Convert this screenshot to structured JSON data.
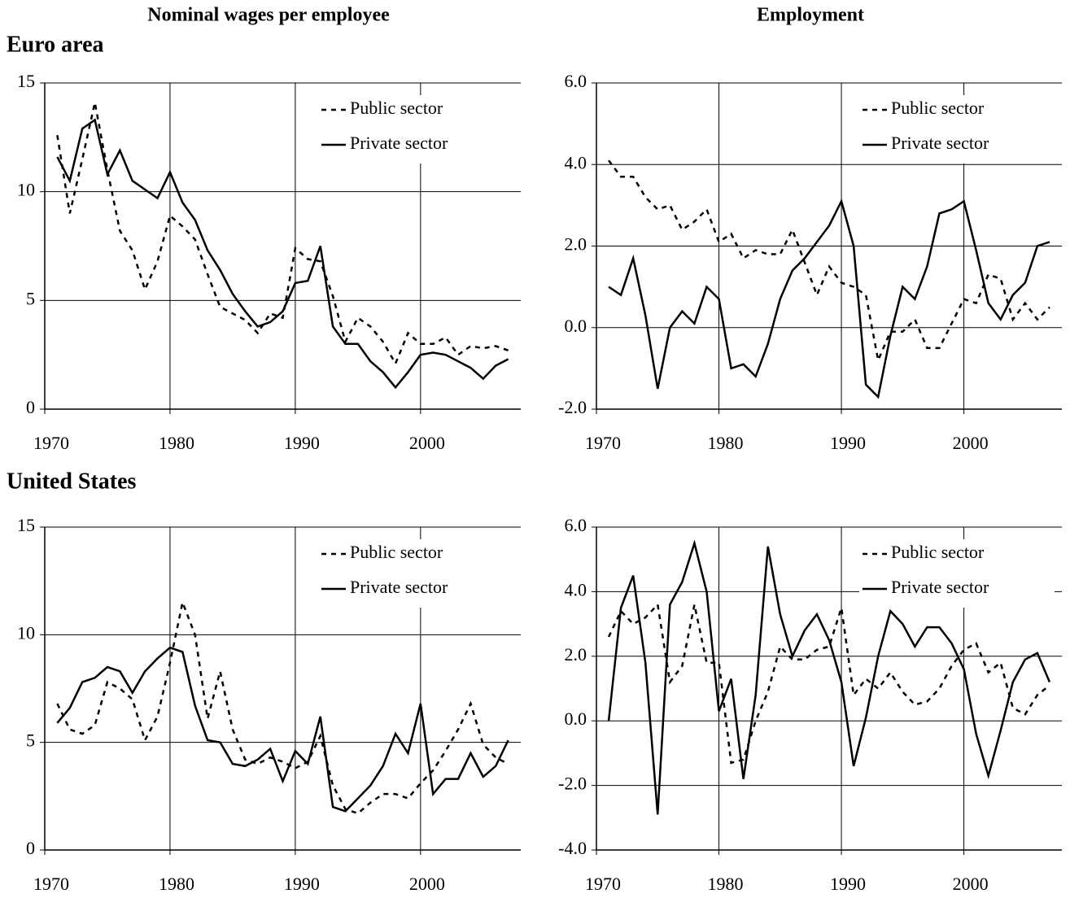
{
  "column_titles": [
    "Nominal wages per employee",
    "Employment"
  ],
  "row_titles": [
    "Euro area",
    "United States"
  ],
  "chart_data": [
    {
      "type": "line",
      "legend": "upper right",
      "grid": true,
      "x": [
        1971,
        1972,
        1973,
        1974,
        1975,
        1976,
        1977,
        1978,
        1979,
        1980,
        1981,
        1982,
        1983,
        1984,
        1985,
        1986,
        1987,
        1988,
        1989,
        1990,
        1991,
        1992,
        1993,
        1994,
        1995,
        1996,
        1997,
        1998,
        1999,
        2000,
        2001,
        2002,
        2003,
        2004,
        2005,
        2006,
        2007
      ],
      "xlim": [
        1970,
        2008
      ],
      "xticks": [
        1970,
        1980,
        1990,
        2000
      ],
      "ylim": [
        0,
        15
      ],
      "yticks": [
        0,
        5,
        10,
        15
      ],
      "series": [
        {
          "name": "Public sector",
          "color": "#000000",
          "linestyle": "dashed",
          "values": [
            12.6,
            9.0,
            11.5,
            14.1,
            11.0,
            8.2,
            7.3,
            5.5,
            6.8,
            8.9,
            8.4,
            7.8,
            6.2,
            4.7,
            4.4,
            4.1,
            3.5,
            4.4,
            4.2,
            7.4,
            6.9,
            6.8,
            5.2,
            3.1,
            4.2,
            3.8,
            3.1,
            2.1,
            3.5,
            3.0,
            3.0,
            3.3,
            2.5,
            2.9,
            2.8,
            2.9,
            2.7
          ]
        },
        {
          "name": "Private sector",
          "color": "#000000",
          "linestyle": "solid",
          "values": [
            11.6,
            10.5,
            12.9,
            13.3,
            10.8,
            11.9,
            10.5,
            10.1,
            9.7,
            10.9,
            9.5,
            8.7,
            7.3,
            6.4,
            5.3,
            4.5,
            3.8,
            4.0,
            4.5,
            5.8,
            5.9,
            7.5,
            3.8,
            3.0,
            3.0,
            2.2,
            1.7,
            1.0,
            1.7,
            2.5,
            2.6,
            2.5,
            2.2,
            1.9,
            1.4,
            2.0,
            2.3
          ]
        }
      ]
    },
    {
      "type": "line",
      "legend": "upper right",
      "grid": true,
      "x": [
        1971,
        1972,
        1973,
        1974,
        1975,
        1976,
        1977,
        1978,
        1979,
        1980,
        1981,
        1982,
        1983,
        1984,
        1985,
        1986,
        1987,
        1988,
        1989,
        1990,
        1991,
        1992,
        1993,
        1994,
        1995,
        1996,
        1997,
        1998,
        1999,
        2000,
        2001,
        2002,
        2003,
        2004,
        2005,
        2006,
        2007
      ],
      "xlim": [
        1970,
        2008
      ],
      "xticks": [
        1970,
        1980,
        1990,
        2000
      ],
      "ylim": [
        -2,
        6
      ],
      "yticks": [
        {
          "value": -2,
          "label": "-2.0"
        },
        {
          "value": 0,
          "label": "0.0"
        },
        {
          "value": 2,
          "label": "2.0"
        },
        {
          "value": 4,
          "label": "4.0"
        },
        {
          "value": 6,
          "label": "6.0"
        }
      ],
      "series": [
        {
          "name": "Public sector",
          "color": "#000000",
          "linestyle": "dashed",
          "values": [
            4.1,
            3.7,
            3.7,
            3.2,
            2.9,
            3.0,
            2.4,
            2.6,
            2.9,
            2.1,
            2.3,
            1.7,
            1.9,
            1.8,
            1.8,
            2.4,
            1.6,
            0.8,
            1.5,
            1.1,
            1.0,
            0.8,
            -0.8,
            -0.1,
            -0.1,
            0.2,
            -0.5,
            -0.5,
            0.1,
            0.7,
            0.6,
            1.3,
            1.2,
            0.2,
            0.6,
            0.2,
            0.5
          ]
        },
        {
          "name": "Private sector",
          "color": "#000000",
          "linestyle": "solid",
          "values": [
            1.0,
            0.8,
            1.7,
            0.3,
            -1.5,
            0.0,
            0.4,
            0.1,
            1.0,
            0.7,
            -1.0,
            -0.9,
            -1.2,
            -0.4,
            0.7,
            1.4,
            1.7,
            2.1,
            2.5,
            3.1,
            2.0,
            -1.4,
            -1.7,
            -0.2,
            1.0,
            0.7,
            1.5,
            2.8,
            2.9,
            3.1,
            1.9,
            0.6,
            0.2,
            0.8,
            1.1,
            2.0,
            2.1
          ]
        }
      ]
    },
    {
      "type": "line",
      "legend": "upper right",
      "grid": true,
      "x": [
        1971,
        1972,
        1973,
        1974,
        1975,
        1976,
        1977,
        1978,
        1979,
        1980,
        1981,
        1982,
        1983,
        1984,
        1985,
        1986,
        1987,
        1988,
        1989,
        1990,
        1991,
        1992,
        1993,
        1994,
        1995,
        1996,
        1997,
        1998,
        1999,
        2000,
        2001,
        2002,
        2003,
        2004,
        2005,
        2006,
        2007
      ],
      "xlim": [
        1970,
        2008
      ],
      "xticks": [
        1970,
        1980,
        1990,
        2000
      ],
      "ylim": [
        0,
        15
      ],
      "yticks": [
        0,
        5,
        10,
        15
      ],
      "series": [
        {
          "name": "Public sector",
          "color": "#000000",
          "linestyle": "dashed",
          "values": [
            6.8,
            5.6,
            5.4,
            5.8,
            7.8,
            7.5,
            7.0,
            5.1,
            6.2,
            8.7,
            11.5,
            10.0,
            6.1,
            8.3,
            5.6,
            4.2,
            4.0,
            4.3,
            4.1,
            3.8,
            4.1,
            5.3,
            3.0,
            1.9,
            1.7,
            2.2,
            2.6,
            2.6,
            2.4,
            3.1,
            3.7,
            4.6,
            5.6,
            6.8,
            4.9,
            4.3,
            4.0
          ]
        },
        {
          "name": "Private sector",
          "color": "#000000",
          "linestyle": "solid",
          "values": [
            5.9,
            6.6,
            7.8,
            8.0,
            8.5,
            8.3,
            7.3,
            8.3,
            8.9,
            9.4,
            9.2,
            6.7,
            5.1,
            5.0,
            4.0,
            3.9,
            4.2,
            4.7,
            3.2,
            4.6,
            4.0,
            6.2,
            2.0,
            1.8,
            2.4,
            3.0,
            3.9,
            5.4,
            4.5,
            6.8,
            2.6,
            3.3,
            3.3,
            4.5,
            3.4,
            3.9,
            5.1
          ]
        }
      ]
    },
    {
      "type": "line",
      "legend": "upper right",
      "grid": true,
      "x": [
        1971,
        1972,
        1973,
        1974,
        1975,
        1976,
        1977,
        1978,
        1979,
        1980,
        1981,
        1982,
        1983,
        1984,
        1985,
        1986,
        1987,
        1988,
        1989,
        1990,
        1991,
        1992,
        1993,
        1994,
        1995,
        1996,
        1997,
        1998,
        1999,
        2000,
        2001,
        2002,
        2003,
        2004,
        2005,
        2006,
        2007
      ],
      "xlim": [
        1970,
        2008
      ],
      "xticks": [
        1970,
        1980,
        1990,
        2000
      ],
      "ylim": [
        -4,
        6
      ],
      "yticks": [
        {
          "value": -4,
          "label": "-4.0"
        },
        {
          "value": -2,
          "label": "-2.0"
        },
        {
          "value": 0,
          "label": "0.0"
        },
        {
          "value": 2,
          "label": "2.0"
        },
        {
          "value": 4,
          "label": "4.0"
        },
        {
          "value": 6,
          "label": "6.0"
        }
      ],
      "series": [
        {
          "name": "Public sector",
          "color": "#000000",
          "linestyle": "dashed",
          "values": [
            2.6,
            3.4,
            3.0,
            3.2,
            3.6,
            1.2,
            1.7,
            3.6,
            1.8,
            1.8,
            -1.3,
            -1.2,
            0.0,
            0.9,
            2.3,
            1.9,
            1.9,
            2.2,
            2.3,
            3.5,
            0.8,
            1.3,
            1.0,
            1.5,
            0.9,
            0.5,
            0.6,
            1.0,
            1.7,
            2.2,
            2.4,
            1.5,
            1.8,
            0.4,
            0.2,
            0.8,
            1.1
          ]
        },
        {
          "name": "Private sector",
          "color": "#000000",
          "linestyle": "solid",
          "values": [
            0.0,
            3.5,
            4.5,
            1.8,
            -2.9,
            3.6,
            4.3,
            5.5,
            4.0,
            0.3,
            1.3,
            -1.8,
            0.8,
            5.4,
            3.3,
            2.0,
            2.8,
            3.3,
            2.5,
            1.2,
            -1.4,
            0.1,
            2.0,
            3.4,
            3.0,
            2.3,
            2.9,
            2.9,
            2.4,
            1.6,
            -0.4,
            -1.7,
            -0.3,
            1.2,
            1.9,
            2.1,
            1.2
          ]
        }
      ]
    }
  ]
}
